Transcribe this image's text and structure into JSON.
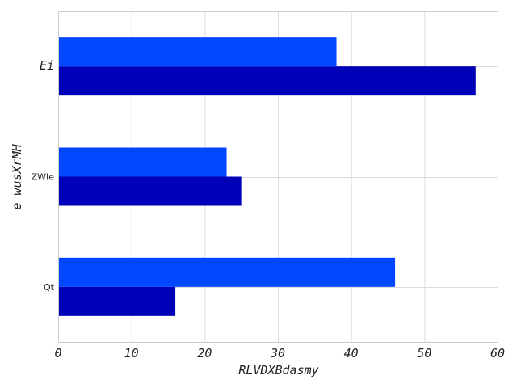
{
  "chart_data": {
    "type": "bar",
    "orientation": "horizontal",
    "categories": [
      "Qt",
      "ZWIe",
      "Ei"
    ],
    "series": [
      {
        "values": [
          16,
          25,
          57
        ],
        "color": "#0000b8"
      },
      {
        "values": [
          46,
          23,
          38
        ],
        "color": "#0047ff"
      }
    ],
    "xlabel": "RLVDXBdasmy",
    "ylabel": "e wusXrMH",
    "xlim": [
      0,
      60
    ],
    "xticks": [
      "0",
      "10",
      "20",
      "30",
      "40",
      "50",
      "60"
    ],
    "grid": true
  }
}
